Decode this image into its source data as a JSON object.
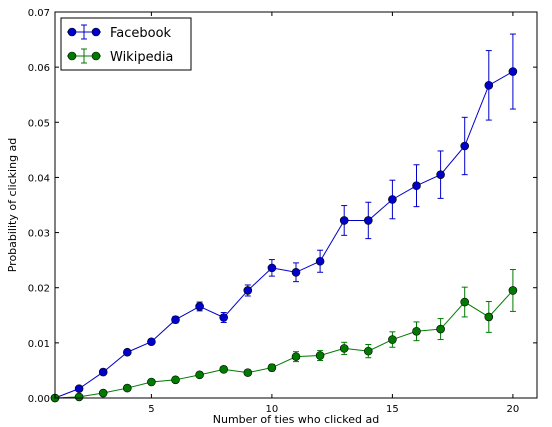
{
  "chart_data": {
    "type": "line",
    "xlabel": "Number of ties who clicked ad",
    "ylabel": "Probability of clicking ad",
    "xlim": [
      1,
      21
    ],
    "ylim": [
      0.0,
      0.07
    ],
    "xticks": [
      5,
      10,
      15,
      20
    ],
    "yticks": [
      0.0,
      0.01,
      0.02,
      0.03,
      0.04,
      0.05,
      0.06,
      0.07
    ],
    "xtick_labels": [
      "5",
      "10",
      "15",
      "20"
    ],
    "ytick_labels": [
      "0.00",
      "0.01",
      "0.02",
      "0.03",
      "0.04",
      "0.05",
      "0.06",
      "0.07"
    ],
    "grid": false,
    "legend_position": "top-left",
    "series": [
      {
        "name": "Facebook",
        "color": "#0000cc",
        "x": [
          1,
          2,
          3,
          4,
          5,
          6,
          7,
          8,
          9,
          10,
          11,
          12,
          13,
          14,
          15,
          16,
          17,
          18,
          19,
          20
        ],
        "y": [
          0.0,
          0.0017,
          0.0047,
          0.0083,
          0.0102,
          0.0142,
          0.0166,
          0.0146,
          0.0195,
          0.0236,
          0.0228,
          0.0248,
          0.0322,
          0.0322,
          0.036,
          0.0385,
          0.0405,
          0.0457,
          0.0567,
          0.0592
        ],
        "err": [
          0.0,
          0.0003,
          0.0005,
          0.0004,
          0.0005,
          0.0006,
          0.0008,
          0.0009,
          0.001,
          0.0015,
          0.0017,
          0.002,
          0.0027,
          0.0033,
          0.0035,
          0.0038,
          0.0043,
          0.0052,
          0.0063,
          0.0068
        ]
      },
      {
        "name": "Wikipedia",
        "color": "#007a00",
        "x": [
          1,
          2,
          3,
          4,
          5,
          6,
          7,
          8,
          9,
          10,
          11,
          12,
          13,
          14,
          15,
          16,
          17,
          18,
          19,
          20
        ],
        "y": [
          0.0,
          0.0002,
          0.0009,
          0.0018,
          0.0029,
          0.0033,
          0.0042,
          0.0052,
          0.0046,
          0.0055,
          0.0075,
          0.0077,
          0.009,
          0.0085,
          0.0106,
          0.0121,
          0.0125,
          0.0174,
          0.0147,
          0.0195
        ],
        "err": [
          0.0,
          0.0001,
          0.0002,
          0.0002,
          0.0003,
          0.0003,
          0.0004,
          0.0005,
          0.0005,
          0.0006,
          0.0009,
          0.0009,
          0.0011,
          0.0012,
          0.0014,
          0.0017,
          0.0019,
          0.0027,
          0.0028,
          0.0038
        ]
      }
    ]
  }
}
